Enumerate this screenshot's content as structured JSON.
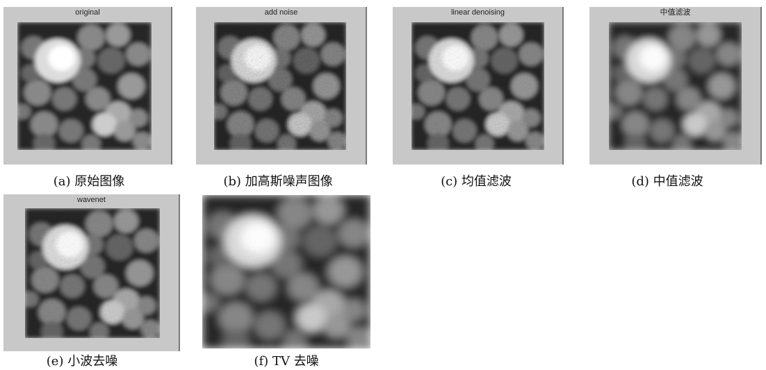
{
  "panels": [
    {
      "title": "original",
      "caption": "(a)  原始图像"
    },
    {
      "title": "add noise",
      "caption": "(b)  加高斯噪声图像"
    },
    {
      "title": "linear denoising",
      "caption": "(c)  均值滤波"
    },
    {
      "title": "中值滤波",
      "caption": "(d)  中值滤波"
    },
    {
      "title": "wavenet",
      "caption": "(e)  小波去噪"
    },
    {
      "caption": "(f)  TV 去噪"
    }
  ]
}
